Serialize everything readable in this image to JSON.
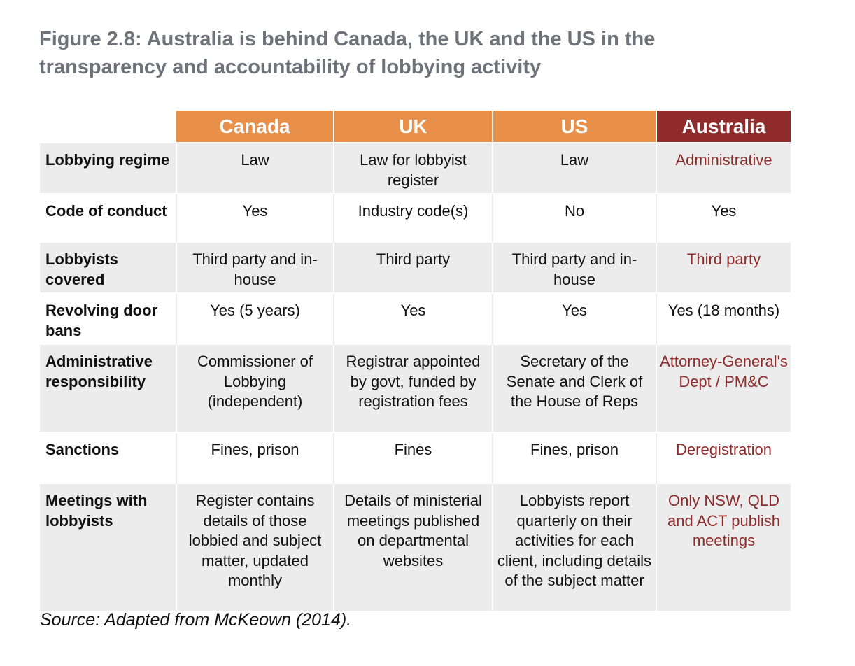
{
  "figure": {
    "title": "Figure 2.8: Australia is behind Canada, the UK and the US in the transparency and accountability of lobbying activity",
    "source": "Source: Adapted from McKeown (2014)."
  },
  "colors": {
    "header_orange": "#e8904a",
    "header_red": "#8f2c2b",
    "australia_text": "#8f2c2b",
    "row_shade": "#ececec",
    "title_gray": "#6d7379"
  },
  "table": {
    "columns": [
      "Canada",
      "UK",
      "US",
      "Australia"
    ],
    "rows": [
      {
        "label": "Lobbying regime",
        "canada": "Law",
        "uk": "Law for lobbyist register",
        "us": "Law",
        "australia": "Administrative"
      },
      {
        "label": "Code of conduct",
        "canada": "Yes",
        "uk": "Industry code(s)",
        "us": "No",
        "australia": "Yes"
      },
      {
        "label": "Lobbyists covered",
        "canada": "Third party and in-house",
        "uk": "Third party",
        "us": "Third party and in-house",
        "australia": "Third party"
      },
      {
        "label": "Revolving door bans",
        "canada": "Yes (5 years)",
        "uk": "Yes",
        "us": "Yes",
        "australia": "Yes (18 months)"
      },
      {
        "label": "Administrative responsibility",
        "canada": "Commissioner of Lobbying (independent)",
        "uk": "Registrar appointed by govt, funded by registration fees",
        "us": "Secretary of the Senate and Clerk of the House of Reps",
        "australia": "Attorney-General's Dept / PM&C"
      },
      {
        "label": "Sanctions",
        "canada": "Fines, prison",
        "uk": "Fines",
        "us": "Fines, prison",
        "australia": "Deregistration"
      },
      {
        "label": "Meetings with lobbyists",
        "canada": "Register contains details of those lobbied and subject matter, updated monthly",
        "uk": "Details of ministerial meetings published on departmental websites",
        "us": "Lobbyists report quarterly on their activities for each client, including details of the subject matter",
        "australia": "Only NSW, QLD and ACT publish meetings"
      }
    ]
  }
}
